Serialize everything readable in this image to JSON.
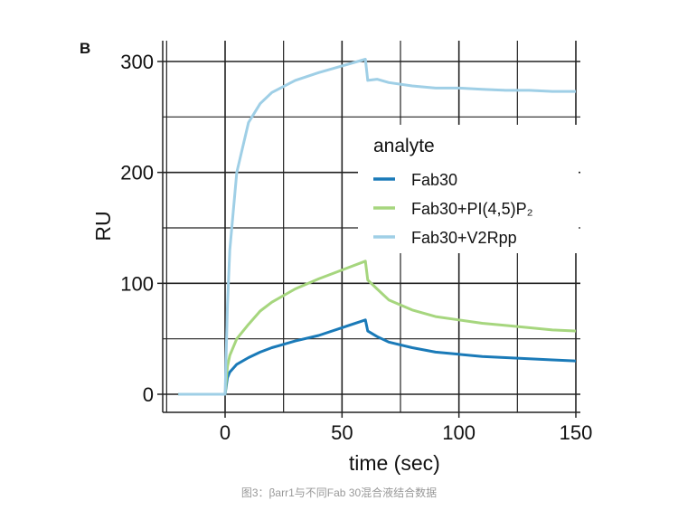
{
  "panel_label": "B",
  "caption": "图3：βarr1与不同Fab 30混合液结合数据",
  "chart_data": {
    "type": "line",
    "title": "",
    "xlabel": "time (sec)",
    "ylabel": "RU",
    "xlim": [
      -25,
      155
    ],
    "ylim": [
      -15,
      320
    ],
    "xticks": [
      0,
      50,
      100,
      150
    ],
    "yticks": [
      0,
      100,
      200,
      300
    ],
    "grid": true,
    "legend": {
      "title": "analyte",
      "placement": "right"
    },
    "x": [
      -20,
      -10,
      0,
      1,
      2,
      5,
      10,
      15,
      20,
      30,
      40,
      50,
      60,
      61,
      65,
      70,
      80,
      90,
      100,
      110,
      120,
      130,
      140,
      150
    ],
    "series": [
      {
        "name": "Fab30",
        "color": "#1a7ab8",
        "values": [
          0,
          0,
          0,
          15,
          20,
          27,
          33,
          38,
          42,
          48,
          53,
          60,
          67,
          57,
          52,
          47,
          42,
          38,
          36,
          34,
          33,
          32,
          31,
          30
        ]
      },
      {
        "name": "Fab30+PI(4,5)P₂",
        "color": "#a6d67e",
        "values": [
          0,
          0,
          0,
          25,
          35,
          50,
          63,
          75,
          83,
          95,
          104,
          112,
          120,
          103,
          95,
          85,
          76,
          70,
          67,
          64,
          62,
          60,
          58,
          57
        ]
      },
      {
        "name": "Fab30+V2Rpp",
        "color": "#9fcfe6",
        "values": [
          0,
          0,
          0,
          80,
          130,
          200,
          245,
          262,
          272,
          283,
          290,
          296,
          302,
          283,
          284,
          281,
          278,
          276,
          276,
          275,
          274,
          274,
          273,
          273
        ]
      }
    ]
  }
}
